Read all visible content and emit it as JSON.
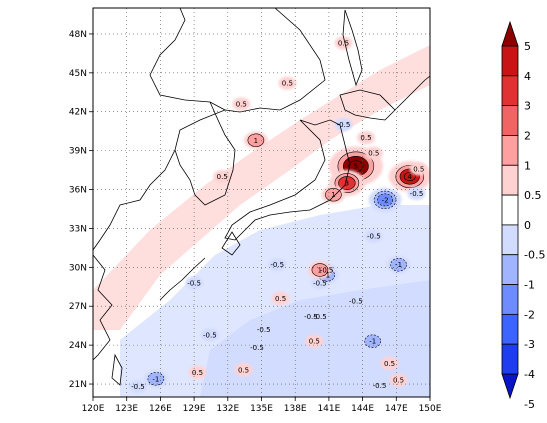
{
  "chart_data": {
    "type": "heatmap",
    "title": "",
    "xlabel": "",
    "ylabel": "",
    "x_ticks": [
      "120E",
      "123E",
      "126E",
      "129E",
      "132E",
      "135E",
      "138E",
      "141E",
      "144E",
      "147E",
      "150E"
    ],
    "x_tick_values": [
      120,
      123,
      126,
      129,
      132,
      135,
      138,
      141,
      144,
      147,
      150
    ],
    "y_ticks": [
      "21N",
      "24N",
      "27N",
      "30N",
      "33N",
      "36N",
      "39N",
      "42N",
      "45N",
      "48N"
    ],
    "y_tick_values": [
      21,
      24,
      27,
      30,
      33,
      36,
      39,
      42,
      45,
      48
    ],
    "xlim": [
      120,
      150
    ],
    "ylim": [
      20,
      50
    ],
    "grid": true,
    "colorbar": {
      "orientation": "vertical",
      "placement": "right",
      "levels": [
        -5,
        -4,
        -3,
        -2,
        -1,
        -0.5,
        0,
        0.5,
        1,
        2,
        3,
        4,
        5
      ],
      "labels": [
        "-5",
        "-4",
        "-3",
        "-2",
        "-1",
        "-0.5",
        "0",
        "0.5",
        "1",
        "2",
        "3",
        "4",
        "5"
      ],
      "colors": [
        "#0a14c8",
        "#1e3cf0",
        "#3c64ff",
        "#6e8cff",
        "#a0b4ff",
        "#d2dcff",
        "#ffffff",
        "#ffd2d2",
        "#ffa0a0",
        "#f06464",
        "#e03232",
        "#c81414",
        "#8c0000"
      ],
      "extend": "both"
    },
    "features": [
      {
        "label": "5",
        "lon": 143.4,
        "lat": 37.8,
        "value": 5
      },
      {
        "label": "3",
        "lon": 142.6,
        "lat": 36.5,
        "value": 3
      },
      {
        "label": "1",
        "lon": 141.4,
        "lat": 35.6,
        "value": 1
      },
      {
        "label": "-2",
        "lon": 146.0,
        "lat": 35.2,
        "value": -2
      },
      {
        "label": "4",
        "lon": 148.2,
        "lat": 37.0,
        "value": 4
      },
      {
        "label": "0.5",
        "lon": 144.3,
        "lat": 40.0,
        "value": 0.5
      },
      {
        "label": "0.5",
        "lon": 145.0,
        "lat": 38.8,
        "value": 0.5
      },
      {
        "label": "0.5",
        "lon": 149.0,
        "lat": 37.6,
        "value": 0.5
      },
      {
        "label": "0.5",
        "lon": 133.2,
        "lat": 42.6,
        "value": 0.5
      },
      {
        "label": "0.5",
        "lon": 137.3,
        "lat": 44.2,
        "value": 0.5
      },
      {
        "label": "-0.5",
        "lon": 142.3,
        "lat": 41.0,
        "value": -0.5
      },
      {
        "label": "0.5",
        "lon": 142.3,
        "lat": 47.3,
        "value": 0.5
      },
      {
        "label": "0.5",
        "lon": 131.5,
        "lat": 37.0,
        "value": 0.5
      },
      {
        "label": "1",
        "lon": 134.5,
        "lat": 39.8,
        "value": 1
      },
      {
        "label": "-0.5",
        "lon": 136.4,
        "lat": 30.2,
        "value": -0.5
      },
      {
        "label": "-0.5",
        "lon": 135.2,
        "lat": 25.2,
        "value": -0.5
      },
      {
        "label": "-0.5",
        "lon": 134.6,
        "lat": 23.8,
        "value": -0.5
      },
      {
        "label": "-0.5",
        "lon": 140.2,
        "lat": 28.8,
        "value": -0.5
      },
      {
        "label": "-0.5",
        "lon": 140.8,
        "lat": 29.8,
        "value": -0.5
      },
      {
        "label": "-0.5",
        "lon": 140.2,
        "lat": 26.2,
        "value": -0.5
      },
      {
        "label": "-0.5",
        "lon": 139.4,
        "lat": 26.2,
        "value": -0.5
      },
      {
        "label": "-0.5",
        "lon": 143.4,
        "lat": 27.4,
        "value": -0.5
      },
      {
        "label": "-0.5",
        "lon": 145.0,
        "lat": 32.4,
        "value": -0.5
      },
      {
        "label": "-0.5",
        "lon": 148.8,
        "lat": 35.7,
        "value": -0.5
      },
      {
        "label": "-0.5",
        "lon": 145.5,
        "lat": 20.9,
        "value": -0.5
      },
      {
        "label": "-0.5",
        "lon": 130.4,
        "lat": 24.8,
        "value": -0.5
      },
      {
        "label": "-0.5",
        "lon": 129.0,
        "lat": 28.8,
        "value": -0.5
      },
      {
        "label": "-1",
        "lon": 140.8,
        "lat": 29.4,
        "value": -1
      },
      {
        "label": "-1",
        "lon": 144.9,
        "lat": 24.3,
        "value": -1
      },
      {
        "label": "-1",
        "lon": 147.2,
        "lat": 30.2,
        "value": -1
      },
      {
        "label": "-1",
        "lon": 125.6,
        "lat": 21.4,
        "value": -1
      },
      {
        "label": "-0.5",
        "lon": 124.0,
        "lat": 20.8,
        "value": -0.5
      },
      {
        "label": "0.5",
        "lon": 129.3,
        "lat": 21.9,
        "value": 0.5
      },
      {
        "label": "0.5",
        "lon": 133.4,
        "lat": 22.1,
        "value": 0.5
      },
      {
        "label": "0.5",
        "lon": 139.7,
        "lat": 24.3,
        "value": 0.5
      },
      {
        "label": "0.5",
        "lon": 136.7,
        "lat": 27.6,
        "value": 0.5
      },
      {
        "label": "0.5",
        "lon": 147.2,
        "lat": 21.3,
        "value": 0.5
      },
      {
        "label": "1",
        "lon": 140.2,
        "lat": 29.8,
        "value": 1
      },
      {
        "label": "0.5",
        "lon": 146.4,
        "lat": 22.6,
        "value": 0.5
      }
    ]
  }
}
